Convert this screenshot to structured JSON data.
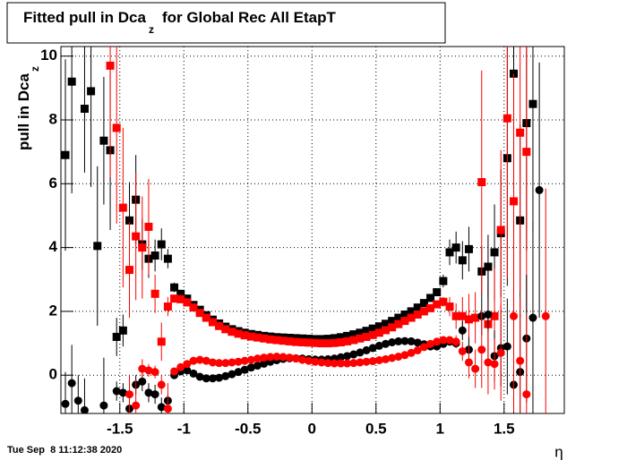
{
  "chart_data": {
    "type": "scatter",
    "title": [
      "Fitted pull in Dca",
      "z",
      "for Global Rec All EtapT"
    ],
    "ylabel": [
      "pull in Dca",
      "z"
    ],
    "xlabel": "η",
    "footer": "Tue Sep  8 11:12:38 2020",
    "xlim": [
      -1.96,
      1.97
    ],
    "ylim": [
      -1.2,
      10.3
    ],
    "xticks": [
      -1.5,
      -1,
      -0.5,
      0,
      0.5,
      1,
      1.5
    ],
    "yticks": [
      0,
      2,
      4,
      6,
      8,
      10
    ],
    "grid": true,
    "x": [
      -1.925,
      -1.875,
      -1.825,
      -1.775,
      -1.725,
      -1.675,
      -1.625,
      -1.575,
      -1.525,
      -1.475,
      -1.425,
      -1.375,
      -1.325,
      -1.275,
      -1.225,
      -1.175,
      -1.125,
      -1.075,
      -1.025,
      -0.975,
      -0.925,
      -0.875,
      -0.825,
      -0.775,
      -0.725,
      -0.675,
      -0.625,
      -0.575,
      -0.525,
      -0.475,
      -0.425,
      -0.375,
      -0.325,
      -0.275,
      -0.225,
      -0.175,
      -0.125,
      -0.075,
      -0.025,
      0.025,
      0.075,
      0.125,
      0.175,
      0.225,
      0.275,
      0.325,
      0.375,
      0.425,
      0.475,
      0.525,
      0.575,
      0.625,
      0.675,
      0.725,
      0.775,
      0.825,
      0.875,
      0.925,
      0.975,
      1.025,
      1.075,
      1.125,
      1.175,
      1.225,
      1.275,
      1.325,
      1.375,
      1.425,
      1.475,
      1.525,
      1.575,
      1.625,
      1.675,
      1.725,
      1.775,
      1.825,
      1.875,
      1.925
    ],
    "series": [
      {
        "color": "#000000",
        "marker": "square",
        "values": [
          6.9,
          9.2,
          null,
          8.35,
          8.9,
          4.05,
          7.35,
          7.05,
          1.2,
          1.4,
          4.85,
          5.5,
          4.1,
          3.65,
          3.75,
          4.1,
          3.65,
          2.75,
          2.55,
          2.4,
          2.2,
          2.05,
          1.88,
          1.74,
          1.62,
          1.52,
          1.44,
          1.38,
          1.33,
          1.29,
          1.26,
          1.23,
          1.21,
          1.19,
          1.18,
          1.17,
          1.16,
          1.15,
          1.14,
          1.13,
          1.13,
          1.14,
          1.16,
          1.19,
          1.23,
          1.28,
          1.33,
          1.39,
          1.46,
          1.53,
          1.61,
          1.7,
          1.8,
          1.9,
          2.0,
          2.12,
          2.26,
          2.42,
          2.6,
          2.95,
          3.85,
          4.0,
          3.6,
          3.95,
          null,
          3.25,
          3.4,
          3.85,
          4.45,
          6.8,
          9.45,
          4.85,
          7.9,
          8.5,
          null,
          null,
          null,
          null
        ],
        "errors": [
          3,
          3.5,
          null,
          2,
          3,
          2.5,
          2,
          2.5,
          0.6,
          0.5,
          1.2,
          1.4,
          0.8,
          0.6,
          0.5,
          0.5,
          0.3,
          0.15,
          0.1,
          0.06,
          0.05,
          0.05,
          0.05,
          0.05,
          0.05,
          0.05,
          0.05,
          0.05,
          0.05,
          0.05,
          0.04,
          0.04,
          0.04,
          0.04,
          0.04,
          0.04,
          0.04,
          0.04,
          0.04,
          0.04,
          0.04,
          0.04,
          0.04,
          0.04,
          0.04,
          0.04,
          0.04,
          0.04,
          0.04,
          0.04,
          0.05,
          0.05,
          0.05,
          0.05,
          0.05,
          0.05,
          0.05,
          0.05,
          0.08,
          0.2,
          0.4,
          0.5,
          0.6,
          0.7,
          null,
          0.8,
          1.0,
          1.5,
          2,
          4,
          4,
          3,
          4,
          4,
          null,
          null,
          null,
          null
        ]
      },
      {
        "color": "#ff0000",
        "marker": "square",
        "values": [
          null,
          null,
          null,
          null,
          null,
          null,
          null,
          9.7,
          7.75,
          5.25,
          3.3,
          4.35,
          4.0,
          4.65,
          2.55,
          1.05,
          2.15,
          2.4,
          2.38,
          2.28,
          2.12,
          1.95,
          1.8,
          1.66,
          1.54,
          1.44,
          1.36,
          1.3,
          1.25,
          1.21,
          1.18,
          1.15,
          1.12,
          1.1,
          1.08,
          1.06,
          1.04,
          1.03,
          1.02,
          1.01,
          1.0,
          1.0,
          1.01,
          1.03,
          1.06,
          1.1,
          1.15,
          1.2,
          1.26,
          1.33,
          1.41,
          1.5,
          1.6,
          1.7,
          1.8,
          1.9,
          2.0,
          2.1,
          2.22,
          2.3,
          2.15,
          1.85,
          1.85,
          1.75,
          1.8,
          6.05,
          1.6,
          1.85,
          4.55,
          8.05,
          5.45,
          7.6,
          7.0,
          null,
          null,
          null,
          null,
          null
        ],
        "errors": [
          null,
          null,
          null,
          null,
          null,
          null,
          null,
          3.5,
          3,
          2.5,
          1.5,
          2,
          1.6,
          1.5,
          0.6,
          0.6,
          0.3,
          0.12,
          0.08,
          0.06,
          0.05,
          0.05,
          0.05,
          0.05,
          0.05,
          0.05,
          0.05,
          0.05,
          0.05,
          0.05,
          0.04,
          0.04,
          0.04,
          0.04,
          0.04,
          0.04,
          0.04,
          0.04,
          0.04,
          0.04,
          0.04,
          0.04,
          0.04,
          0.04,
          0.04,
          0.04,
          0.04,
          0.04,
          0.04,
          0.04,
          0.05,
          0.05,
          0.05,
          0.05,
          0.05,
          0.05,
          0.05,
          0.05,
          0.1,
          0.15,
          0.3,
          0.4,
          0.6,
          0.8,
          0.8,
          3.5,
          1.2,
          1.5,
          2.5,
          5,
          4,
          5,
          5,
          null,
          null,
          null,
          null,
          null
        ]
      },
      {
        "color": "#000000",
        "marker": "circle",
        "values": [
          -0.9,
          -0.25,
          -0.8,
          -1.1,
          null,
          null,
          -0.95,
          null,
          -0.5,
          -0.55,
          -1.05,
          -0.3,
          -0.2,
          -0.55,
          -0.6,
          -1.0,
          -0.8,
          0.0,
          0.12,
          0.15,
          0.05,
          -0.05,
          -0.1,
          -0.1,
          -0.08,
          -0.03,
          0.03,
          0.1,
          0.17,
          0.24,
          0.3,
          0.36,
          0.42,
          0.47,
          0.51,
          0.53,
          0.53,
          0.52,
          0.5,
          0.49,
          0.49,
          0.5,
          0.52,
          0.56,
          0.6,
          0.65,
          0.71,
          0.78,
          0.85,
          0.92,
          0.98,
          1.03,
          1.06,
          1.07,
          1.06,
          1.02,
          0.97,
          0.9,
          0.9,
          0.98,
          1.05,
          1.0,
          1.4,
          0.8,
          null,
          1.85,
          1.9,
          0.6,
          0.85,
          0.9,
          -0.3,
          0.1,
          1.15,
          1.8,
          5.8,
          null,
          null,
          null
        ],
        "errors": [
          1,
          1.2,
          0.8,
          1,
          null,
          null,
          1.5,
          null,
          0.3,
          0.3,
          0.6,
          0.3,
          0.3,
          0.3,
          0.3,
          0.3,
          0.2,
          0.1,
          0.06,
          0.05,
          0.04,
          0.04,
          0.04,
          0.04,
          0.04,
          0.04,
          0.04,
          0.04,
          0.04,
          0.04,
          0.03,
          0.03,
          0.03,
          0.03,
          0.03,
          0.03,
          0.03,
          0.03,
          0.03,
          0.03,
          0.03,
          0.03,
          0.03,
          0.03,
          0.03,
          0.03,
          0.03,
          0.03,
          0.03,
          0.03,
          0.04,
          0.04,
          0.04,
          0.04,
          0.04,
          0.04,
          0.04,
          0.04,
          0.06,
          0.08,
          0.1,
          0.15,
          0.3,
          0.4,
          null,
          0.6,
          1.5,
          0.8,
          1.2,
          1.5,
          1.5,
          1.8,
          2,
          3,
          4,
          null,
          null,
          null
        ]
      },
      {
        "color": "#ff0000",
        "marker": "circle",
        "values": [
          null,
          null,
          null,
          null,
          null,
          null,
          null,
          null,
          null,
          null,
          -0.6,
          -0.95,
          0.2,
          0.15,
          0.1,
          -0.3,
          -1.05,
          0.12,
          0.25,
          0.35,
          0.45,
          0.48,
          0.45,
          0.4,
          0.38,
          0.38,
          0.4,
          0.42,
          0.45,
          0.48,
          0.52,
          0.55,
          0.57,
          0.58,
          0.57,
          0.55,
          0.52,
          0.48,
          0.45,
          0.42,
          0.4,
          0.38,
          0.37,
          0.37,
          0.37,
          0.38,
          0.4,
          0.42,
          0.44,
          0.47,
          0.5,
          0.54,
          0.58,
          0.63,
          0.7,
          0.78,
          0.88,
          0.98,
          1.05,
          1.1,
          1.1,
          1.05,
          0.75,
          0.4,
          0.2,
          0.8,
          0.4,
          0.35,
          0.7,
          null,
          1.85,
          0.45,
          -0.6,
          null,
          null,
          1.85,
          null,
          null
        ],
        "errors": [
          null,
          null,
          null,
          null,
          null,
          null,
          null,
          null,
          null,
          null,
          0.6,
          0.8,
          0.3,
          0.2,
          0.2,
          0.3,
          0.8,
          0.1,
          0.06,
          0.05,
          0.04,
          0.04,
          0.04,
          0.04,
          0.04,
          0.04,
          0.04,
          0.04,
          0.04,
          0.04,
          0.03,
          0.03,
          0.03,
          0.03,
          0.03,
          0.03,
          0.03,
          0.03,
          0.03,
          0.03,
          0.03,
          0.03,
          0.03,
          0.03,
          0.03,
          0.03,
          0.03,
          0.03,
          0.03,
          0.03,
          0.04,
          0.04,
          0.04,
          0.04,
          0.04,
          0.04,
          0.04,
          0.04,
          0.06,
          0.08,
          0.12,
          0.2,
          0.3,
          0.5,
          0.6,
          1.2,
          1.0,
          0.8,
          1.5,
          null,
          3,
          2,
          2.5,
          null,
          null,
          4,
          null,
          null
        ]
      }
    ]
  }
}
